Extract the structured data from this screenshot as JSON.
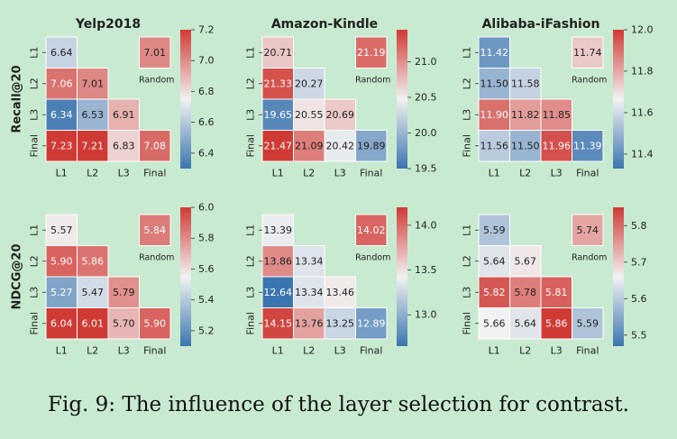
{
  "caption": "Fig. 9: The influence of the layer selection for contrast.",
  "random_label": "Random",
  "chart_data": [
    {
      "type": "heatmap",
      "title": "Yelp2018",
      "ylabel": "Recall@20",
      "x_categories": [
        "L1",
        "L2",
        "L3",
        "Final"
      ],
      "y_categories": [
        "L1",
        "L2",
        "L3",
        "Final"
      ],
      "cells": [
        [
          6.64,
          null,
          null,
          7.01
        ],
        [
          7.06,
          7.01,
          null,
          null
        ],
        [
          6.34,
          6.53,
          6.91,
          null
        ],
        [
          7.23,
          7.21,
          6.83,
          7.08
        ]
      ],
      "labels": [
        [
          "6.64",
          "",
          "",
          "7.01"
        ],
        [
          "7.06",
          "7.01",
          "",
          ""
        ],
        [
          "6.34",
          "6.53",
          "6.91",
          ""
        ],
        [
          "7.23",
          "7.21",
          "6.83",
          "7.08"
        ]
      ],
      "vmin": 6.3,
      "vmax": 7.2,
      "colorbar_ticks": [
        6.4,
        6.6,
        6.8,
        7.0,
        7.2
      ],
      "colorbar_labels": [
        "6.4",
        "6.6",
        "6.8",
        "7.0",
        "7.2"
      ],
      "random_cell": [
        1,
        3
      ]
    },
    {
      "type": "heatmap",
      "title": "Amazon-Kindle",
      "ylabel": "",
      "x_categories": [
        "L1",
        "L2",
        "L3",
        "Final"
      ],
      "y_categories": [
        "L1",
        "L2",
        "L3",
        "Final"
      ],
      "cells": [
        [
          20.71,
          null,
          null,
          21.19
        ],
        [
          21.33,
          20.27,
          null,
          null
        ],
        [
          19.65,
          20.55,
          20.69,
          null
        ],
        [
          21.47,
          21.09,
          20.42,
          19.89
        ]
      ],
      "labels": [
        [
          "20.71",
          "",
          "",
          "21.19"
        ],
        [
          "21.33",
          "20.27",
          "",
          ""
        ],
        [
          "19.65",
          "20.55",
          "20.69",
          ""
        ],
        [
          "21.47",
          "21.09",
          "20.42",
          "19.89"
        ]
      ],
      "vmin": 19.5,
      "vmax": 21.45,
      "colorbar_ticks": [
        19.5,
        20.0,
        20.5,
        21.0
      ],
      "colorbar_labels": [
        "19.5",
        "20.0",
        "20.5",
        "21.0"
      ],
      "random_cell": [
        1,
        3
      ]
    },
    {
      "type": "heatmap",
      "title": "Alibaba-iFashion",
      "ylabel": "",
      "x_categories": [
        "L1",
        "L2",
        "L3",
        "Final"
      ],
      "y_categories": [
        "L1",
        "L2",
        "L3",
        "Final"
      ],
      "cells": [
        [
          11.42,
          null,
          null,
          11.74
        ],
        [
          11.5,
          11.58,
          null,
          null
        ],
        [
          11.9,
          11.82,
          11.85,
          null
        ],
        [
          11.56,
          11.5,
          11.96,
          11.39
        ]
      ],
      "labels": [
        [
          "11.42",
          "",
          "",
          "11.74"
        ],
        [
          "11.50",
          "11.58",
          "",
          ""
        ],
        [
          "11.90",
          "11.82",
          "11.85",
          ""
        ],
        [
          "11.56",
          "11.50",
          "11.96",
          "11.39"
        ]
      ],
      "vmin": 11.33,
      "vmax": 12.0,
      "colorbar_ticks": [
        11.4,
        11.6,
        11.8,
        12.0
      ],
      "colorbar_labels": [
        "11.4",
        "11.6",
        "11.8",
        "12.0"
      ],
      "random_cell": [
        1,
        3
      ]
    },
    {
      "type": "heatmap",
      "title": "",
      "ylabel": "NDCG@20",
      "x_categories": [
        "L1",
        "L2",
        "L3",
        "Final"
      ],
      "y_categories": [
        "L1",
        "L2",
        "L3",
        "Final"
      ],
      "cells": [
        [
          5.57,
          null,
          null,
          5.84
        ],
        [
          5.9,
          5.86,
          null,
          null
        ],
        [
          5.27,
          5.47,
          5.79,
          null
        ],
        [
          6.04,
          6.01,
          5.7,
          5.9
        ]
      ],
      "labels": [
        [
          "5.57",
          "",
          "",
          "5.84"
        ],
        [
          "5.90",
          "5.86",
          "",
          ""
        ],
        [
          "5.27",
          "5.47",
          "5.79",
          ""
        ],
        [
          "6.04",
          "6.01",
          "5.70",
          "5.90"
        ]
      ],
      "vmin": 5.1,
      "vmax": 6.0,
      "colorbar_ticks": [
        5.2,
        5.4,
        5.6,
        5.8,
        6.0
      ],
      "colorbar_labels": [
        "5.2",
        "5.4",
        "5.6",
        "5.8",
        "6.0"
      ],
      "random_cell": [
        1,
        3
      ]
    },
    {
      "type": "heatmap",
      "title": "",
      "ylabel": "",
      "x_categories": [
        "L1",
        "L2",
        "L3",
        "Final"
      ],
      "y_categories": [
        "L1",
        "L2",
        "L3",
        "Final"
      ],
      "cells": [
        [
          13.39,
          null,
          null,
          14.02
        ],
        [
          13.86,
          13.34,
          null,
          null
        ],
        [
          12.64,
          13.34,
          13.46,
          null
        ],
        [
          14.15,
          13.76,
          13.25,
          12.89
        ]
      ],
      "labels": [
        [
          "13.39",
          "",
          "",
          "14.02"
        ],
        [
          "13.86",
          "13.34",
          "",
          ""
        ],
        [
          "12.64",
          "13.34",
          "13.46",
          ""
        ],
        [
          "14.15",
          "13.76",
          "13.25",
          "12.89"
        ]
      ],
      "vmin": 12.65,
      "vmax": 14.2,
      "colorbar_ticks": [
        13.0,
        13.5,
        14.0
      ],
      "colorbar_labels": [
        "13.0",
        "13.5",
        "14.0"
      ],
      "random_cell": [
        1,
        3
      ]
    },
    {
      "type": "heatmap",
      "title": "",
      "ylabel": "",
      "x_categories": [
        "L1",
        "L2",
        "L3",
        "Final"
      ],
      "y_categories": [
        "L1",
        "L2",
        "L3",
        "Final"
      ],
      "cells": [
        [
          5.59,
          null,
          null,
          5.74
        ],
        [
          5.64,
          5.67,
          null,
          null
        ],
        [
          5.82,
          5.78,
          5.81,
          null
        ],
        [
          5.66,
          5.64,
          5.86,
          5.59
        ]
      ],
      "labels": [
        [
          "5.59",
          "",
          "",
          "5.74"
        ],
        [
          "5.64",
          "5.67",
          "",
          ""
        ],
        [
          "5.82",
          "5.78",
          "5.81",
          ""
        ],
        [
          "5.66",
          "5.64",
          "5.86",
          "5.59"
        ]
      ],
      "vmin": 5.47,
      "vmax": 5.85,
      "colorbar_ticks": [
        5.5,
        5.6,
        5.7,
        5.8
      ],
      "colorbar_labels": [
        "5.5",
        "5.6",
        "5.7",
        "5.8"
      ],
      "random_cell": [
        1,
        3
      ]
    }
  ],
  "colors": {
    "low": "#3b75af",
    "mid": "#f2f2f2",
    "high": "#d03a35",
    "text_dark": "#222222",
    "text_light": "#ffffff"
  }
}
